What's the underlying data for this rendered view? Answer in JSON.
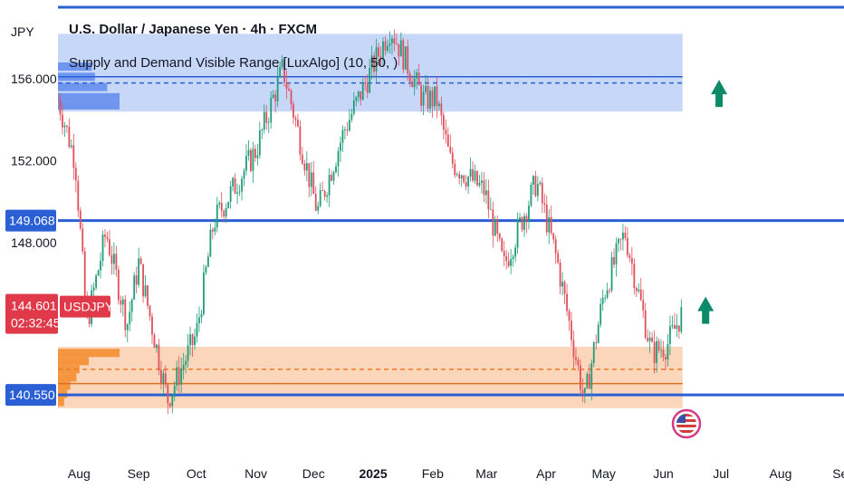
{
  "header": {
    "currency": "JPY",
    "title": "U.S. Dollar / Japanese Yen · 4h · FXCM",
    "indicator": "Supply and Demand Visible Range [LuxAlgo] (10, 50, )"
  },
  "price_tags": {
    "resistance": "149.068",
    "current": "144.601",
    "countdown": "02:32:45",
    "symbol": "USDJPY",
    "support": "140.550"
  },
  "colors": {
    "supply_zone": "#c7d7f8",
    "supply_profile": "#6f95ee",
    "demand_zone": "#fbd6bb",
    "demand_profile": "#f5953f",
    "level_line": "#2b5fd4",
    "current_price": "#e03a4a",
    "arrow": "#0d8a6a",
    "candle_up": "#1f9d7a",
    "candle_down": "#e0505c",
    "axis_text": "#131722"
  },
  "chart_data": {
    "type": "candlestick",
    "title": "U.S. Dollar / Japanese Yen · 4h · FXCM",
    "ylim": [
      137.5,
      159.5
    ],
    "y_ticks": [
      156.0,
      152.0,
      148.0
    ],
    "y_tick_labels": [
      "156.000",
      "152.000",
      "148.000"
    ],
    "x_tick_labels": [
      "Aug",
      "Sep",
      "Oct",
      "Nov",
      "Dec",
      "2025",
      "Feb",
      "Mar",
      "Apr",
      "May",
      "Jun",
      "Jul",
      "Aug",
      "Se"
    ],
    "x_range": [
      "2024-07-21",
      "2025-09-03"
    ],
    "x_ticks": [
      "2024-08-01",
      "2024-09-01",
      "2024-10-01",
      "2024-11-01",
      "2024-12-01",
      "2025-01-01",
      "2025-02-01",
      "2025-03-01",
      "2025-04-01",
      "2025-05-01",
      "2025-06-01",
      "2025-07-01",
      "2025-08-01",
      "2025-09-01"
    ],
    "bold_ticks": [
      "2025"
    ],
    "price_path": [
      {
        "date": "2024-07-21",
        "price": 155.0
      },
      {
        "date": "2024-07-30",
        "price": 152.0
      },
      {
        "date": "2024-08-05",
        "price": 144.0
      },
      {
        "date": "2024-08-15",
        "price": 148.5
      },
      {
        "date": "2024-08-26",
        "price": 144.0
      },
      {
        "date": "2024-09-01",
        "price": 147.0
      },
      {
        "date": "2024-09-16",
        "price": 140.3
      },
      {
        "date": "2024-10-01",
        "price": 143.5
      },
      {
        "date": "2024-10-10",
        "price": 149.0
      },
      {
        "date": "2024-11-01",
        "price": 152.5
      },
      {
        "date": "2024-11-15",
        "price": 156.5
      },
      {
        "date": "2024-12-03",
        "price": 149.5
      },
      {
        "date": "2024-12-17",
        "price": 153.5
      },
      {
        "date": "2025-01-10",
        "price": 158.5
      },
      {
        "date": "2025-01-27",
        "price": 155.0
      },
      {
        "date": "2025-02-03",
        "price": 155.0
      },
      {
        "date": "2025-02-10",
        "price": 152.0
      },
      {
        "date": "2025-02-28",
        "price": 150.5
      },
      {
        "date": "2025-03-10",
        "price": 146.8
      },
      {
        "date": "2025-03-27",
        "price": 151.0
      },
      {
        "date": "2025-04-07",
        "price": 147.0
      },
      {
        "date": "2025-04-21",
        "price": 140.2
      },
      {
        "date": "2025-05-01",
        "price": 145.5
      },
      {
        "date": "2025-05-12",
        "price": 148.5
      },
      {
        "date": "2025-05-26",
        "price": 142.6
      },
      {
        "date": "2025-06-03",
        "price": 143.0
      },
      {
        "date": "2025-06-11",
        "price": 144.6
      }
    ],
    "levels": [
      {
        "label": "149.068",
        "price": 149.068
      },
      {
        "label": "140.550",
        "price": 140.55
      }
    ],
    "current_price": 144.601,
    "supply_zone": {
      "top": 158.2,
      "bottom": 154.4,
      "mid": 155.8,
      "avg": 156.1,
      "end": "2025-06-11"
    },
    "demand_zone": {
      "top": 142.9,
      "bottom": 139.9,
      "mid": 141.8,
      "avg": 141.1,
      "end": "2025-06-11"
    },
    "supply_profile": [
      {
        "price": 156.6,
        "weight": 0.55
      },
      {
        "price": 156.1,
        "weight": 0.6
      },
      {
        "price": 155.6,
        "weight": 0.8
      },
      {
        "price": 155.1,
        "weight": 1.0
      },
      {
        "price": 154.7,
        "weight": 1.0
      }
    ],
    "demand_profile": [
      {
        "price": 142.6,
        "weight": 1.0
      },
      {
        "price": 142.2,
        "weight": 0.5
      },
      {
        "price": 141.8,
        "weight": 0.35
      },
      {
        "price": 141.4,
        "weight": 0.3
      },
      {
        "price": 141.0,
        "weight": 0.2
      },
      {
        "price": 140.6,
        "weight": 0.15
      },
      {
        "price": 140.2,
        "weight": 0.1
      }
    ],
    "signals": [
      {
        "type": "up-arrow",
        "date": "2025-06-30",
        "price": 154.8
      },
      {
        "type": "up-arrow",
        "date": "2025-06-23",
        "price": 144.2
      }
    ]
  }
}
